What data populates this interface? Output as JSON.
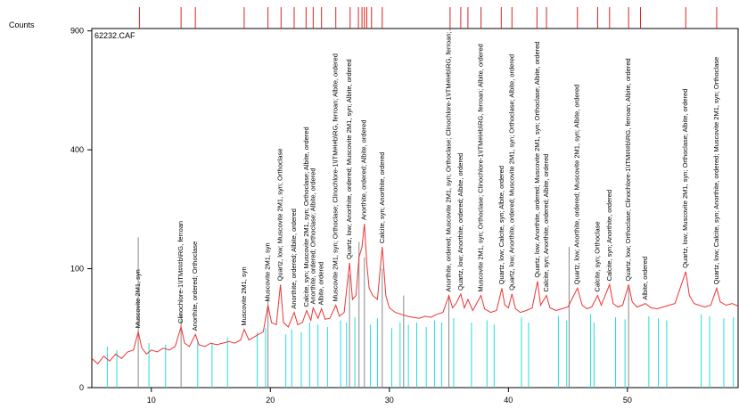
{
  "chart_data": {
    "type": "line",
    "y_axis_label": "Counts",
    "annotation": "62232.CAF",
    "y_scale": "sqrt",
    "xlim": [
      5,
      59.3
    ],
    "ylim": [
      0,
      912
    ],
    "xticks": [
      10,
      20,
      30,
      40,
      50
    ],
    "yticks": [
      0,
      100,
      400,
      900
    ],
    "series": [
      {
        "color": "#ee3333",
        "x": [
          5,
          5.5,
          6,
          6.5,
          7,
          7.5,
          8,
          8.5,
          8.9,
          9.2,
          9.6,
          10,
          10.5,
          11,
          11.5,
          12,
          12.5,
          12.8,
          13.2,
          13.7,
          14,
          14.5,
          15,
          15.5,
          16,
          16.5,
          17,
          17.5,
          17.8,
          18.2,
          18.6,
          19,
          19.4,
          19.8,
          20.1,
          20.5,
          20.85,
          21.1,
          21.5,
          22,
          22.3,
          22.7,
          23.05,
          23.4,
          23.6,
          24,
          24.3,
          24.6,
          25,
          25.5,
          25.8,
          26.2,
          26.65,
          26.9,
          27.2,
          27.45,
          27.7,
          27.9,
          28.1,
          28.3,
          28.6,
          29,
          29.4,
          29.7,
          30,
          30.5,
          31,
          31.5,
          32,
          32.5,
          33,
          33.5,
          34,
          34.5,
          35,
          35.3,
          35.6,
          36,
          36.3,
          36.6,
          37,
          37.7,
          38,
          38.5,
          39,
          39.45,
          39.7,
          40,
          40.3,
          40.6,
          41,
          41.5,
          42,
          42.45,
          42.7,
          43.2,
          43.5,
          44,
          44.5,
          45,
          45.8,
          46.2,
          46.6,
          47,
          47.5,
          47.8,
          48.5,
          48.8,
          49.2,
          49.6,
          50.1,
          50.4,
          50.8,
          51.2,
          51.5,
          52,
          52.5,
          53,
          53.5,
          54,
          54.9,
          55.2,
          55.6,
          56,
          56.5,
          57,
          57.5,
          57.8,
          58.3,
          58.8,
          59.3
        ],
        "values": [
          6,
          4,
          7,
          5,
          8,
          6,
          9,
          10,
          22,
          11,
          8,
          10,
          9,
          11,
          10,
          12,
          26,
          14,
          12,
          20,
          13,
          12,
          14,
          13,
          14,
          15,
          14,
          16,
          24,
          16,
          18,
          20,
          22,
          48,
          30,
          28,
          75,
          30,
          26,
          40,
          28,
          30,
          42,
          32,
          45,
          34,
          44,
          33,
          34,
          48,
          36,
          40,
          110,
          55,
          60,
          120,
          140,
          190,
          110,
          70,
          60,
          55,
          140,
          60,
          45,
          40,
          38,
          36,
          35,
          34,
          36,
          35,
          38,
          40,
          60,
          45,
          50,
          62,
          45,
          55,
          42,
          60,
          44,
          40,
          42,
          70,
          48,
          45,
          62,
          44,
          40,
          42,
          45,
          80,
          48,
          60,
          45,
          42,
          44,
          46,
          70,
          48,
          44,
          46,
          60,
          48,
          75,
          50,
          46,
          48,
          75,
          52,
          46,
          48,
          50,
          45,
          44,
          46,
          48,
          50,
          95,
          60,
          50,
          48,
          46,
          48,
          70,
          52,
          48,
          50,
          47
        ]
      }
    ],
    "sticks": [
      {
        "color": "#22dddd",
        "x": [
          6.3,
          7.1,
          9.8,
          11.2,
          13.9,
          15.1,
          16.4,
          18.9,
          19.6,
          21.3,
          21.8,
          22.6,
          23.3,
          24.0,
          24.8,
          25.9,
          26.4,
          27.1,
          28.4,
          29.0,
          30.2,
          30.9,
          31.6,
          32.3,
          33.1,
          33.8,
          34.4,
          35.4,
          36.9,
          38.2,
          38.8,
          41.1,
          41.7,
          44.2,
          44.9,
          46.9,
          47.2,
          49.0,
          49.8,
          51.8,
          52.6,
          53.3,
          56.2,
          56.9,
          58.1,
          58.9
        ],
        "values": [
          12,
          10,
          14,
          13,
          15,
          14,
          18,
          22,
          25,
          20,
          24,
          22,
          30,
          28,
          26,
          32,
          30,
          35,
          28,
          34,
          25,
          30,
          28,
          30,
          26,
          32,
          30,
          34,
          30,
          32,
          28,
          35,
          30,
          36,
          32,
          38,
          30,
          35,
          33,
          36,
          34,
          32,
          38,
          36,
          34,
          35
        ]
      },
      {
        "color": "#888888",
        "x": [
          8.9,
          12.5,
          19.8,
          26.65,
          27.45,
          27.9,
          29.4,
          31.2,
          35.0,
          45.1,
          50.1
        ],
        "values": [
          160,
          40,
          55,
          90,
          150,
          120,
          100,
          60,
          60,
          140,
          70
        ]
      }
    ],
    "reference_peaks": {
      "color": "#dd2222",
      "x": [
        9,
        12.5,
        13.7,
        17.8,
        19.8,
        20.9,
        22.0,
        23.0,
        23.6,
        24.3,
        25.5,
        26.7,
        27.4,
        27.7,
        27.9,
        28.1,
        28.5,
        29.4,
        35.1,
        36.0,
        36.6,
        37.7,
        39.4,
        40.3,
        42.4,
        43.2,
        45.8,
        47.5,
        48.5,
        50.1,
        51.1,
        54.9,
        57.5
      ]
    },
    "peak_labels": [
      {
        "x": 8.9,
        "text": "Muscovite 2M1, syn"
      },
      {
        "x": 12.5,
        "text": "Clinochlore-1\\ITM#I#b\\RG, ferroan"
      },
      {
        "x": 13.7,
        "text": "Anorthite, ordered; Orthoclase"
      },
      {
        "x": 17.8,
        "text": "Muscovite 2M1, syn"
      },
      {
        "x": 19.8,
        "text": "Muscovite 2M1, syn"
      },
      {
        "x": 20.85,
        "text": "Quartz, low; Muscovite 2M1, syn; Orthoclase"
      },
      {
        "x": 22.0,
        "text": "Anorthite, ordered; Albite, ordered"
      },
      {
        "x": 23.05,
        "text": "Calcite, syn; Muscovite 2M1, syn; Orthoclase; Albite, ordered"
      },
      {
        "x": 23.6,
        "text": "Anorthite, ordered; Orthoclase; Albite, ordered"
      },
      {
        "x": 24.3,
        "text": "Albite, ordered"
      },
      {
        "x": 25.5,
        "text": "Muscovite 2M1, syn; Orthoclase; Clinochlore-1\\ITM#I#b\\RG, ferroan; Albite, ordered"
      },
      {
        "x": 26.65,
        "text": "Quartz, low; Anorthite, ordered; Muscovite 2M1, syn; Albite, ordered"
      },
      {
        "x": 27.9,
        "text": "Anorthite, ordered; Albite, ordered"
      },
      {
        "x": 29.4,
        "text": "Calcite, syn; Anorthite, ordered"
      },
      {
        "x": 35.0,
        "text": "Anorthite, ordered; Muscovite 2M1, syn; Orthoclase; Clinochlore-1\\ITM#I#b\\RG, ferroan; Albite, ordered"
      },
      {
        "x": 36.0,
        "text": "Quartz, low; Anorthite, ordered; Albite, ordered"
      },
      {
        "x": 37.7,
        "text": "Muscovite 2M1, syn; Orthoclase; Clinochlore-1\\ITM#I#b\\RG, ferroan; Albite, ordered"
      },
      {
        "x": 39.45,
        "text": "Quartz, low; Calcite, syn; Albite, ordered"
      },
      {
        "x": 40.3,
        "text": "Quartz, low; Anorthite, ordered; Muscovite 2M1, syn; Orthoclase; Albite, ordered"
      },
      {
        "x": 42.45,
        "text": "Quartz, low; Anorthite, ordered; Muscovite 2M1, syn; Orthoclase; Albite, ordered"
      },
      {
        "x": 43.2,
        "text": "Calcite, syn; Anorthite, ordered; Albite, ordered"
      },
      {
        "x": 45.8,
        "text": "Quartz, low; Anorthite, ordered; Muscovite 2M1, syn; Albite, ordered"
      },
      {
        "x": 47.5,
        "text": "Calcite, syn; Orthoclase"
      },
      {
        "x": 48.5,
        "text": "Calcite, syn; Anorthite, ordered"
      },
      {
        "x": 50.1,
        "text": "Quartz, low; Orthoclase; Clinochlore-1\\ITM#I#b\\RG, ferroan; Albite, ordered"
      },
      {
        "x": 51.5,
        "text": "Albite, ordered"
      },
      {
        "x": 54.9,
        "text": "Quartz, low; Muscovite 2M1, syn; Orthoclase; Albite, ordered"
      },
      {
        "x": 57.5,
        "text": "Quartz, low; Calcite, syn; Anorthite, ordered; Muscovite 2M1, syn; Orthoclase"
      }
    ]
  }
}
